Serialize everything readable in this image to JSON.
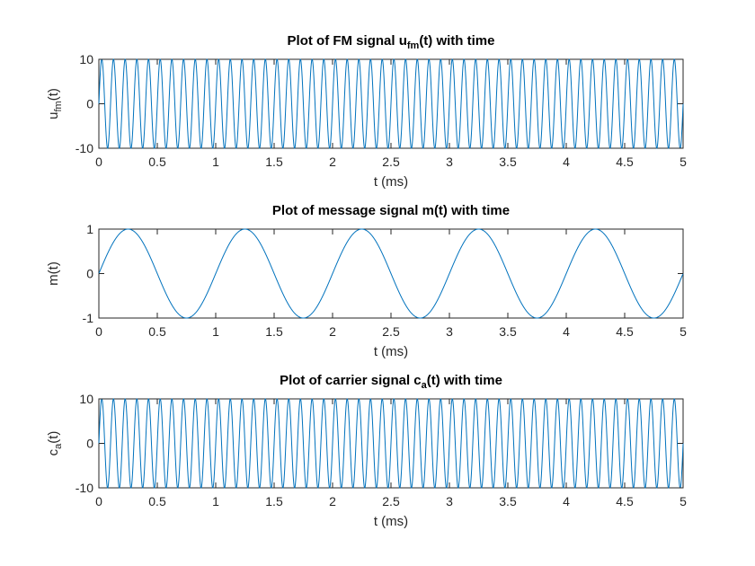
{
  "chart_data": [
    {
      "type": "line",
      "title": {
        "pre": "Plot of FM signal u",
        "sub": "fm",
        "post": "(t) with time"
      },
      "xlabel": "t (ms)",
      "ylabel": {
        "pre": "u",
        "sub": "fm",
        "post": "(t)"
      },
      "xlim": [
        0,
        5
      ],
      "ylim": [
        -10,
        10
      ],
      "xticks": [
        "0",
        "0.5",
        "1",
        "1.5",
        "2",
        "2.5",
        "3",
        "3.5",
        "4",
        "4.5",
        "5"
      ],
      "yticks": [
        "-10",
        "0",
        "10"
      ],
      "grid": false,
      "line_color": "#0072BD",
      "series": [
        {
          "function": "sine",
          "amplitude": 10,
          "frequency_khz": 10,
          "phase_deg": 0
        }
      ]
    },
    {
      "type": "line",
      "title": {
        "pre": "Plot of message signal m(t) with time",
        "sub": "",
        "post": ""
      },
      "xlabel": "t (ms)",
      "ylabel": {
        "pre": "m(t)",
        "sub": "",
        "post": ""
      },
      "xlim": [
        0,
        5
      ],
      "ylim": [
        -1,
        1
      ],
      "xticks": [
        "0",
        "0.5",
        "1",
        "1.5",
        "2",
        "2.5",
        "3",
        "3.5",
        "4",
        "4.5",
        "5"
      ],
      "yticks": [
        "-1",
        "0",
        "1"
      ],
      "grid": false,
      "line_color": "#0072BD",
      "series": [
        {
          "function": "sine",
          "amplitude": 1,
          "frequency_khz": 1,
          "phase_deg": 0
        }
      ]
    },
    {
      "type": "line",
      "title": {
        "pre": "Plot of carrier signal c",
        "sub": "a",
        "post": "(t) with time"
      },
      "xlabel": "t (ms)",
      "ylabel": {
        "pre": "c",
        "sub": "a",
        "post": "(t)"
      },
      "xlim": [
        0,
        5
      ],
      "ylim": [
        -10,
        10
      ],
      "xticks": [
        "0",
        "0.5",
        "1",
        "1.5",
        "2",
        "2.5",
        "3",
        "3.5",
        "4",
        "4.5",
        "5"
      ],
      "yticks": [
        "-10",
        "0",
        "10"
      ],
      "grid": false,
      "line_color": "#0072BD",
      "series": [
        {
          "function": "sine",
          "amplitude": 10,
          "frequency_khz": 10,
          "phase_deg": 0
        }
      ]
    }
  ]
}
